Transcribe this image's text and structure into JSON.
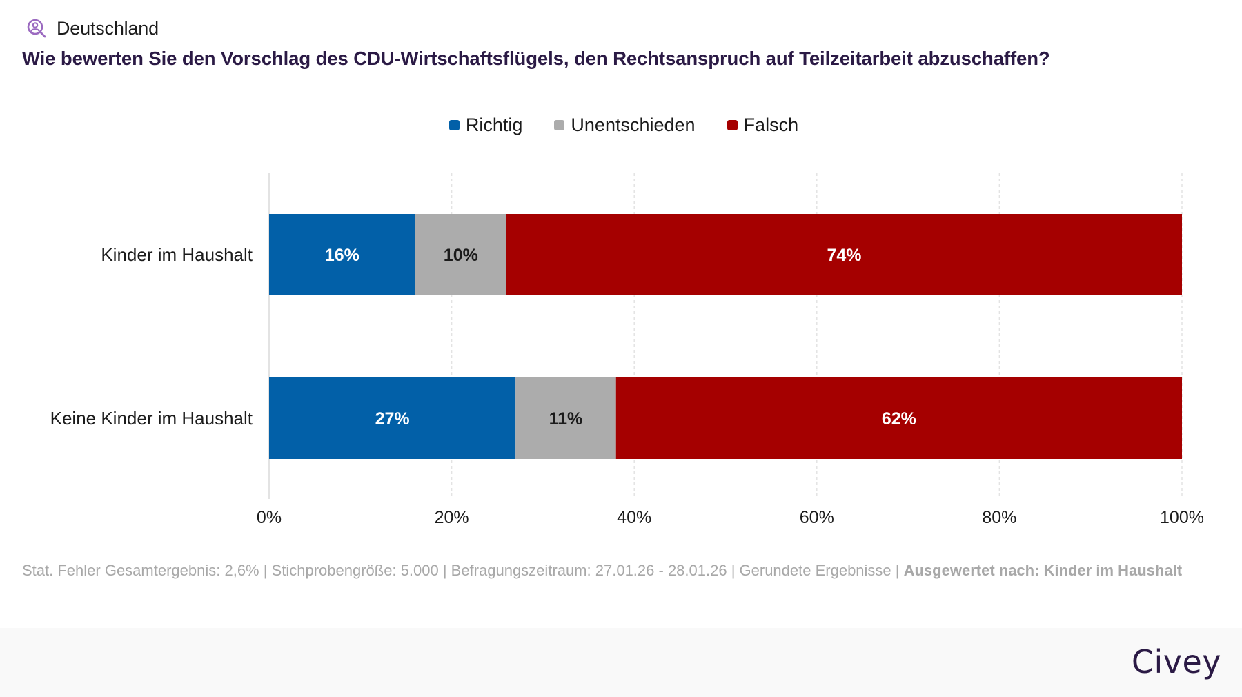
{
  "header": {
    "icon": "user-search-icon",
    "region": "Deutschland",
    "question": "Wie bewerten Sie den Vorschlag des CDU-Wirtschaftsflügels, den Rechtsanspruch auf Teilzeitarbeit abzuschaffen?"
  },
  "colors": {
    "richtig": "#0260a8",
    "unentschieden": "#acacac",
    "falsch": "#a50000",
    "accent_icon": "#9b6ac0",
    "title": "#2b1a45"
  },
  "chart_data": {
    "type": "bar",
    "orientation": "horizontal",
    "stacked": true,
    "title": "Wie bewerten Sie den Vorschlag des CDU-Wirtschaftsflügels, den Rechtsanspruch auf Teilzeitarbeit abzuschaffen?",
    "categories": [
      "Kinder im Haushalt",
      "Keine Kinder im Haushalt"
    ],
    "series": [
      {
        "name": "Richtig",
        "color": "#0260a8",
        "label_color": "#ffffff",
        "values": [
          16,
          27
        ]
      },
      {
        "name": "Unentschieden",
        "color": "#acacac",
        "label_color": "#1b1b1b",
        "values": [
          10,
          11
        ]
      },
      {
        "name": "Falsch",
        "color": "#a50000",
        "label_color": "#ffffff",
        "values": [
          74,
          62
        ]
      }
    ],
    "value_suffix": "%",
    "xlim": [
      0,
      100
    ],
    "xticks": [
      0,
      20,
      40,
      60,
      80,
      100
    ],
    "xtick_labels": [
      "0%",
      "20%",
      "40%",
      "60%",
      "80%",
      "100%"
    ],
    "xlabel": "",
    "ylabel": "",
    "grid": true,
    "legend": "top-center"
  },
  "note": {
    "text": "Stat. Fehler Gesamtergebnis: 2,6% | Stichprobengröße: 5.000 | Befragungszeitraum: 27.01.26 - 28.01.26 | Gerundete Ergebnisse | ",
    "bold": "Ausgewertet nach: Kinder im Haushalt"
  },
  "footer": {
    "brand": "Civey"
  }
}
